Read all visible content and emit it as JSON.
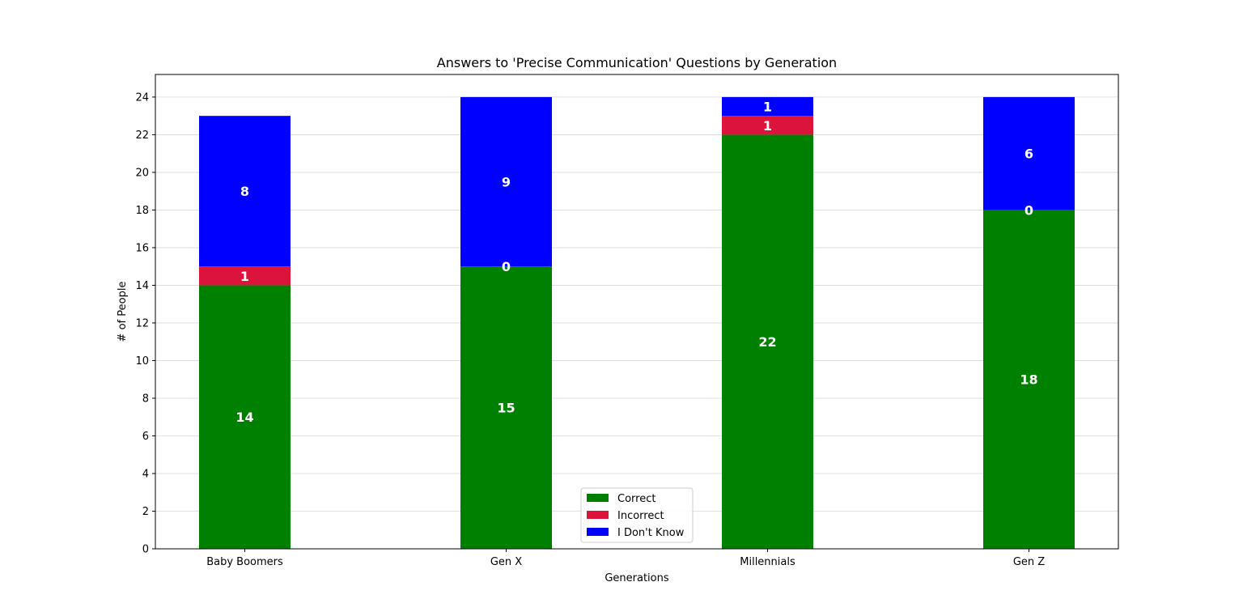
{
  "chart_data": {
    "type": "bar",
    "stacked": true,
    "title": "Answers to 'Precise Communication' Questions by Generation",
    "xlabel": "Generations",
    "ylabel": "# of People",
    "categories": [
      "Baby Boomers",
      "Gen X",
      "Millennials",
      "Gen Z"
    ],
    "ylim": [
      0,
      25.2
    ],
    "yticks": [
      "0",
      "2",
      "4",
      "6",
      "8",
      "10",
      "12",
      "14",
      "16",
      "18",
      "20",
      "22",
      "24"
    ],
    "grid": "horizontal",
    "legend_position": "bottom-center",
    "series": [
      {
        "name": "Correct",
        "color": "#008000",
        "values": [
          14,
          15,
          22,
          18
        ]
      },
      {
        "name": "Incorrect",
        "color": "#dc143c",
        "values": [
          1,
          0,
          1,
          0
        ]
      },
      {
        "name": "I Don't Know",
        "color": "#0000ff",
        "values": [
          8,
          9,
          1,
          6
        ]
      }
    ]
  }
}
